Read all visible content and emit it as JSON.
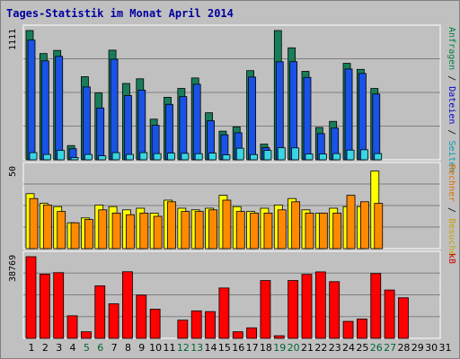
{
  "title": "Tages-Statistik im Monat April 2014",
  "colors": {
    "besuche": "#197d5a",
    "dateien": "#1a52e6",
    "seiten": "#38d6e4",
    "rechner": "#ff8a00",
    "kb": "#ff0000",
    "panel": "#c0c0c0",
    "grid": "#808080",
    "weekend_label": "#006633"
  },
  "chart_data": [
    {
      "type": "bar",
      "panel": "top",
      "scale_max_label": "1111",
      "right_labels": [
        {
          "text": "Anfragen",
          "color": "#008040"
        },
        {
          "text": " / ",
          "color": "#000000"
        },
        {
          "text": "Dateien",
          "color": "#0000d0"
        },
        {
          "text": " / ",
          "color": "#000000"
        },
        {
          "text": "Seiten",
          "color": "#00a0b0"
        }
      ],
      "categories": [
        "1",
        "2",
        "3",
        "4",
        "5",
        "6",
        "7",
        "8",
        "9",
        "10",
        "11",
        "12",
        "13",
        "14",
        "15",
        "16",
        "17",
        "18",
        "19",
        "20",
        "21",
        "22",
        "23",
        "24",
        "25",
        "26",
        "27",
        "28",
        "29",
        "30",
        "31"
      ],
      "ylim": [
        0,
        1111
      ],
      "series": [
        {
          "name": "Anfragen",
          "key": "besuche",
          "values": [
            1111,
            913,
            940,
            122,
            714,
            574,
            942,
            656,
            696,
            349,
            537,
            613,
            703,
            404,
            246,
            283,
            766,
            134,
            1111,
            962,
            760,
            278,
            330,
            829,
            777,
            613,
            0,
            0,
            0,
            0,
            0
          ]
        },
        {
          "name": "Dateien",
          "key": "dateien",
          "values": [
            1029,
            850,
            889,
            95,
            626,
            445,
            864,
            552,
            599,
            296,
            476,
            543,
            649,
            335,
            215,
            232,
            711,
            104,
            842,
            843,
            708,
            225,
            272,
            780,
            742,
            565,
            0,
            0,
            0,
            0,
            0
          ]
        },
        {
          "name": "Seiten",
          "key": "seiten",
          "values": [
            61,
            46,
            80,
            19,
            46,
            34,
            61,
            46,
            61,
            53,
            57,
            55,
            52,
            57,
            42,
            99,
            45,
            80,
            103,
            102,
            50,
            50,
            53,
            83,
            86,
            53,
            0,
            0,
            0,
            0,
            0
          ]
        }
      ]
    },
    {
      "type": "bar",
      "panel": "middle",
      "scale_max_label": "50",
      "right_labels": [
        {
          "text": "Rechner",
          "color": "#e07000"
        },
        {
          "text": " / ",
          "color": "#000000"
        },
        {
          "text": "Besuche",
          "color": "#c8a000"
        }
      ],
      "ylim": [
        0,
        50
      ],
      "series": [
        {
          "name": "Besuche",
          "key": "besuche",
          "values": [
            34,
            28,
            26,
            16,
            19,
            27,
            26,
            24,
            25,
            22,
            30,
            25,
            24,
            25,
            33,
            26,
            23,
            25,
            27,
            31,
            24,
            22,
            25,
            26,
            26,
            48,
            0,
            0,
            0,
            0,
            0
          ]
        },
        {
          "name": "Rechner",
          "key": "rechner",
          "values": [
            31,
            27,
            23,
            16,
            18,
            24,
            22,
            21,
            22,
            20,
            29,
            23,
            23,
            24,
            30,
            23,
            22,
            22,
            24,
            29,
            22,
            22,
            22,
            33,
            29,
            28,
            0,
            0,
            0,
            0,
            0
          ]
        }
      ]
    },
    {
      "type": "bar",
      "panel": "bottom",
      "scale_max_label": "38769",
      "right_labels": [
        {
          "text": "kB",
          "color": "#d00000"
        }
      ],
      "ylim": [
        0,
        38769
      ],
      "series": [
        {
          "name": "kB",
          "key": "kb",
          "values": [
            38769,
            30490,
            31195,
            10714,
            3131,
            24941,
            16411,
            31625,
            20535,
            13838,
            0,
            8640,
            13060,
            12710,
            23913,
            3131,
            5000,
            27453,
            1250,
            27453,
            30380,
            31550,
            26930,
            8070,
            9190,
            30800,
            22950,
            19270,
            0,
            0,
            0
          ]
        }
      ]
    }
  ],
  "days": [
    {
      "label": "1",
      "weekend": false
    },
    {
      "label": "2",
      "weekend": false
    },
    {
      "label": "3",
      "weekend": false
    },
    {
      "label": "4",
      "weekend": false
    },
    {
      "label": "5",
      "weekend": true
    },
    {
      "label": "6",
      "weekend": true
    },
    {
      "label": "7",
      "weekend": false
    },
    {
      "label": "8",
      "weekend": false
    },
    {
      "label": "9",
      "weekend": false
    },
    {
      "label": "10",
      "weekend": false
    },
    {
      "label": "11",
      "weekend": false
    },
    {
      "label": "12",
      "weekend": true
    },
    {
      "label": "13",
      "weekend": true
    },
    {
      "label": "14",
      "weekend": false
    },
    {
      "label": "15",
      "weekend": false
    },
    {
      "label": "16",
      "weekend": false
    },
    {
      "label": "17",
      "weekend": false
    },
    {
      "label": "18",
      "weekend": false
    },
    {
      "label": "19",
      "weekend": true
    },
    {
      "label": "20",
      "weekend": true
    },
    {
      "label": "21",
      "weekend": false
    },
    {
      "label": "22",
      "weekend": false
    },
    {
      "label": "23",
      "weekend": false
    },
    {
      "label": "24",
      "weekend": false
    },
    {
      "label": "25",
      "weekend": false
    },
    {
      "label": "26",
      "weekend": true
    },
    {
      "label": "27",
      "weekend": true
    },
    {
      "label": "28",
      "weekend": false
    },
    {
      "label": "29",
      "weekend": false
    },
    {
      "label": "30",
      "weekend": false
    },
    {
      "label": "31",
      "weekend": false
    }
  ]
}
